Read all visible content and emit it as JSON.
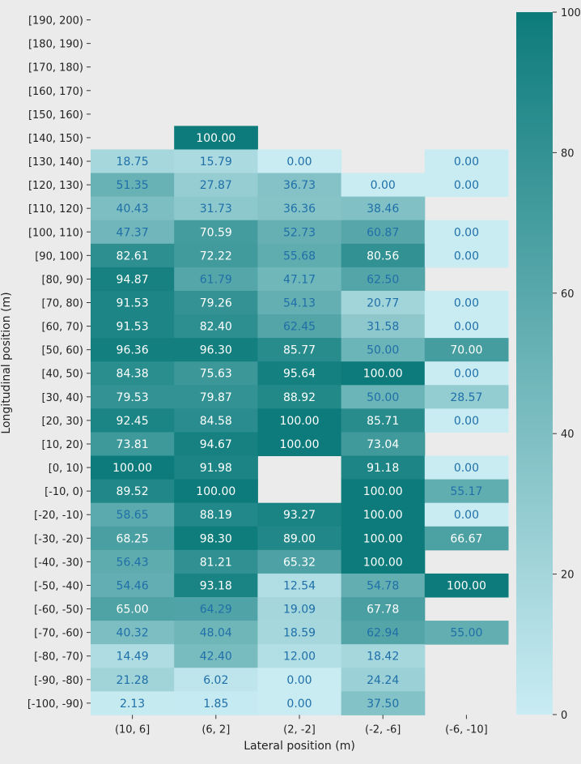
{
  "chart_data": {
    "type": "heatmap",
    "title": "",
    "xlabel": "Lateral position (m)",
    "ylabel": "Longitudinal position (m)",
    "x_categories": [
      "(10, 6]",
      "(6, 2]",
      "(2, -2]",
      "(-2, -6]",
      "(-6, -10]"
    ],
    "y_categories": [
      "[190, 200)",
      "[180, 190)",
      "[170, 180)",
      "[160, 170)",
      "[150, 160)",
      "[140, 150)",
      "[130, 140)",
      "[120, 130)",
      "[110, 120)",
      "[100, 110)",
      "[90, 100)",
      "[80, 90)",
      "[70, 80)",
      "[60, 70)",
      "[50, 60)",
      "[40, 50)",
      "[30, 40)",
      "[20, 30)",
      "[10, 20)",
      "[0, 10)",
      "[-10, 0)",
      "[-20, -10)",
      "[-30, -20)",
      "[-40, -30)",
      "[-50, -40)",
      "[-60, -50)",
      "[-70, -60)",
      "[-80, -70)",
      "[-90, -80)",
      "[-100, -90)"
    ],
    "values": [
      [
        null,
        null,
        null,
        null,
        null
      ],
      [
        null,
        null,
        null,
        null,
        null
      ],
      [
        null,
        null,
        null,
        null,
        null
      ],
      [
        null,
        null,
        null,
        null,
        null
      ],
      [
        null,
        null,
        null,
        null,
        null
      ],
      [
        null,
        "100.00",
        null,
        null,
        null
      ],
      [
        "18.75",
        "15.79",
        "0.00",
        null,
        "0.00"
      ],
      [
        "51.35",
        "27.87",
        "36.73",
        "0.00",
        "0.00"
      ],
      [
        "40.43",
        "31.73",
        "36.36",
        "38.46",
        null
      ],
      [
        "47.37",
        "70.59",
        "52.73",
        "60.87",
        "0.00"
      ],
      [
        "82.61",
        "72.22",
        "55.68",
        "80.56",
        "0.00"
      ],
      [
        "94.87",
        "61.79",
        "47.17",
        "62.50",
        null
      ],
      [
        "91.53",
        "79.26",
        "54.13",
        "20.77",
        "0.00"
      ],
      [
        "91.53",
        "82.40",
        "62.45",
        "31.58",
        "0.00"
      ],
      [
        "96.36",
        "96.30",
        "85.77",
        "50.00",
        "70.00"
      ],
      [
        "84.38",
        "75.63",
        "95.64",
        "100.00",
        "0.00"
      ],
      [
        "79.53",
        "79.87",
        "88.92",
        "50.00",
        "28.57"
      ],
      [
        "92.45",
        "84.58",
        "100.00",
        "85.71",
        "0.00"
      ],
      [
        "73.81",
        "94.67",
        "100.00",
        "73.04",
        null
      ],
      [
        "100.00",
        "91.98",
        null,
        "91.18",
        "0.00"
      ],
      [
        "89.52",
        "100.00",
        null,
        "100.00",
        "55.17"
      ],
      [
        "58.65",
        "88.19",
        "93.27",
        "100.00",
        "0.00"
      ],
      [
        "68.25",
        "98.30",
        "89.00",
        "100.00",
        "66.67"
      ],
      [
        "56.43",
        "81.21",
        "65.32",
        "100.00",
        null
      ],
      [
        "54.46",
        "93.18",
        "12.54",
        "54.78",
        "100.00"
      ],
      [
        "65.00",
        "64.29",
        "19.09",
        "67.78",
        null
      ],
      [
        "40.32",
        "48.04",
        "18.59",
        "62.94",
        "55.00"
      ],
      [
        "14.49",
        "42.40",
        "12.00",
        "18.42",
        null
      ],
      [
        "21.28",
        "6.02",
        "0.00",
        "24.24",
        null
      ],
      [
        "2.13",
        "1.85",
        "0.00",
        "37.50",
        null
      ]
    ],
    "colorbar": {
      "range": [
        0,
        100
      ],
      "ticks": [
        "0",
        "20",
        "40",
        "60",
        "80",
        "100"
      ],
      "color_low": "#c9ecf3",
      "color_high": "#0d7b7b"
    },
    "label_colors": {
      "light": "#1f6fa8",
      "dark": "#ffffff"
    }
  }
}
